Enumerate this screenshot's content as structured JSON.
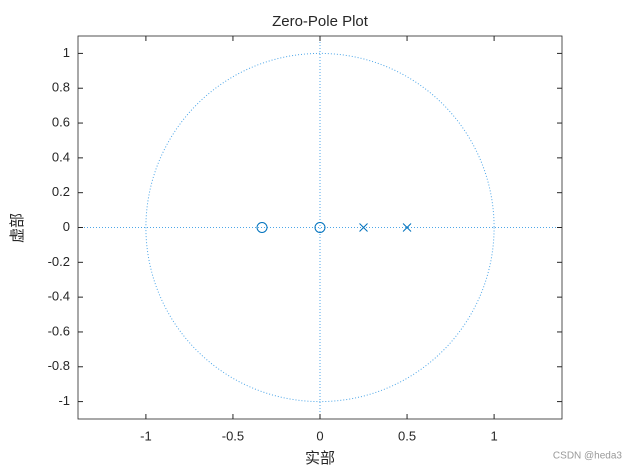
{
  "chart_data": {
    "type": "zplane",
    "title": "Zero-Pole Plot",
    "x_label": "实部",
    "y_label": "虚部",
    "series": [
      {
        "name": "zeros",
        "color": "#0072bd",
        "marker": "o",
        "x": [
          -0.333,
          0
        ],
        "values": [
          0,
          0
        ]
      },
      {
        "name": "poles",
        "color": "#0072bd",
        "marker": "x",
        "x": [
          0.25,
          0.5
        ],
        "values": [
          0,
          0
        ]
      }
    ],
    "xlim": [
      -1.39,
      1.39
    ],
    "ylim": [
      -1.1,
      1.1
    ],
    "xticks": [
      -1,
      -0.5,
      0,
      0.5,
      1
    ],
    "yticks": [
      -1,
      -0.8,
      -0.6,
      -0.4,
      -0.2,
      0,
      0.2,
      0.4,
      0.6,
      0.8,
      1
    ],
    "guide_color": "#4da6e8",
    "watermark": "CSDN @heda3"
  }
}
